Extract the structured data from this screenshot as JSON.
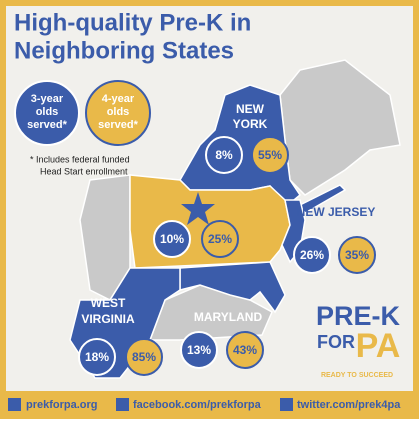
{
  "header": {
    "title_lines": [
      "High-quality Pre-K in",
      "Neighboring States"
    ]
  },
  "legend": [
    {
      "label_lines": [
        "3-year",
        "olds",
        "served*"
      ]
    },
    {
      "label_lines": [
        "4-year",
        "olds",
        "served*"
      ]
    }
  ],
  "footnote_lines": [
    "* Includes federal funded",
    "Head Start enrollment"
  ],
  "states": [
    {
      "name_lines": [
        "NEW",
        "YORK"
      ],
      "three_year": "8%",
      "four_year": "55%"
    },
    {
      "three_year": "10%",
      "four_year": "25%"
    },
    {
      "name_lines": [
        "NEW JERSEY"
      ],
      "three_year": "26%",
      "four_year": "35%"
    },
    {
      "name_lines": [
        "MARYLAND"
      ],
      "three_year": "13%",
      "four_year": "43%"
    },
    {
      "name_lines": [
        "WEST",
        "VIRGINIA"
      ],
      "three_year": "18%",
      "four_year": "85%"
    }
  ],
  "logo": {
    "lines": [
      "PRE-K",
      "FOR",
      "PA"
    ],
    "tagline": "READY TO SUCCEED"
  },
  "footer": [
    "prekforpa.org",
    "facebook.com/prekforpa",
    "twitter.com/prek4pa"
  ]
}
